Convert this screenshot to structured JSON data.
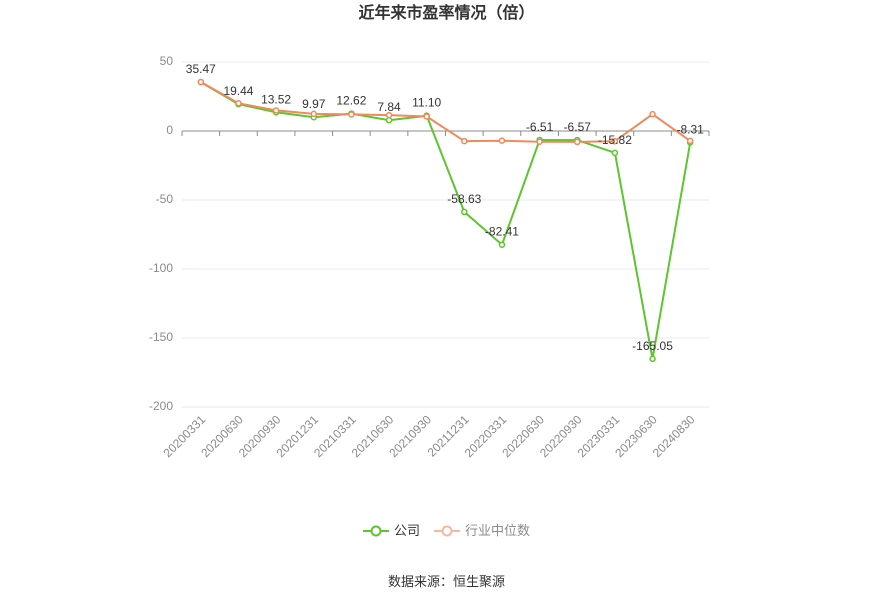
{
  "chart_data": {
    "type": "line",
    "title": "近年来市盈率情况（倍）",
    "categories": [
      "20200331",
      "20200630",
      "20200930",
      "20201231",
      "20210331",
      "20210630",
      "20210930",
      "20211231",
      "20220331",
      "20220630",
      "20220930",
      "20230331",
      "20230630",
      "20240830"
    ],
    "series": [
      {
        "name": "公司",
        "color": "#5ec42f",
        "legend_color": "#5ec42f",
        "data_labels": true,
        "values": [
          35.47,
          19.44,
          13.52,
          9.97,
          12.62,
          7.84,
          11.1,
          -58.63,
          -82.41,
          -6.51,
          -6.57,
          -15.82,
          -165.05,
          -8.31
        ]
      },
      {
        "name": "行业中位数",
        "color": "#ee8a5c",
        "legend_color": "#f5b9a1",
        "data_labels": false,
        "values": [
          35.5,
          20.1,
          14.9,
          12.4,
          12.0,
          11.5,
          10.5,
          -7.3,
          -7.0,
          -7.8,
          -7.9,
          -7.4,
          12.2,
          -7.2
        ]
      }
    ],
    "yticks": [
      50,
      0,
      -50,
      -100,
      -150,
      -200
    ],
    "ylim": [
      -200,
      50
    ],
    "grid": true,
    "legend_position": "bottom"
  },
  "source": "数据来源：恒生聚源"
}
